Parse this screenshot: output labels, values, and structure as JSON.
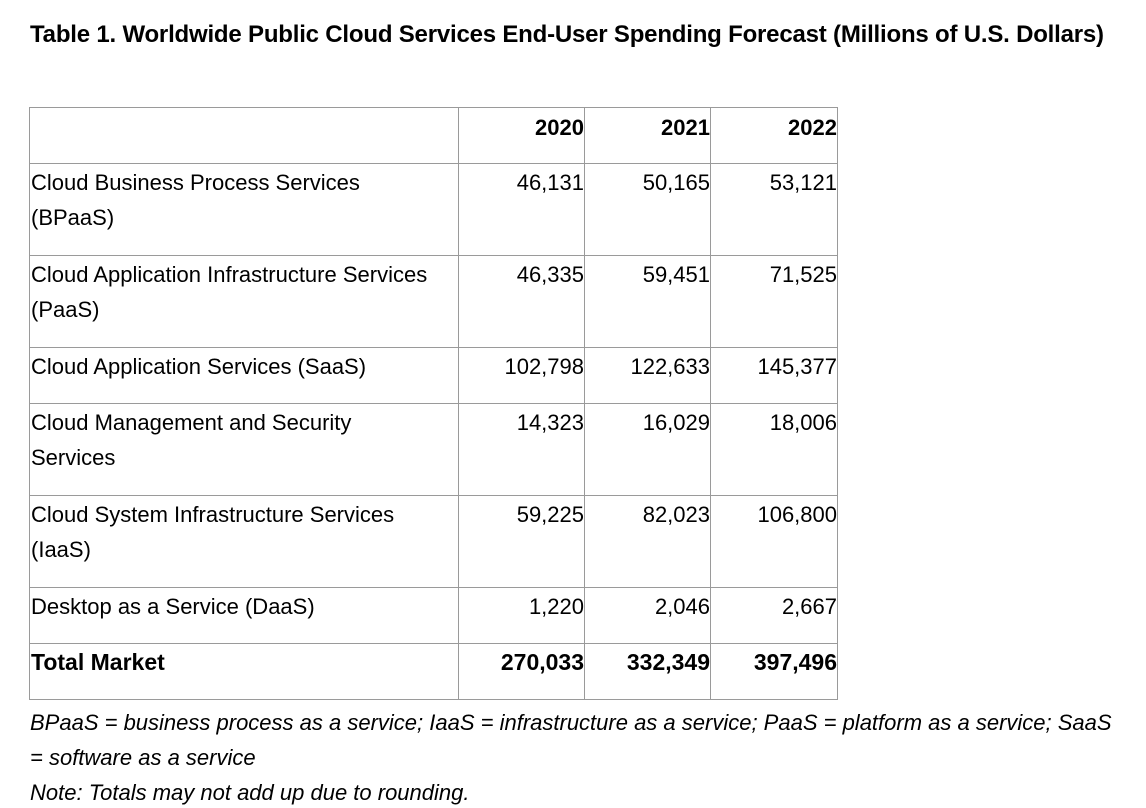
{
  "caption": "Table 1. Worldwide Public Cloud Services End-User Spending Forecast (Millions of U.S. Dollars)",
  "table": {
    "header": [
      "",
      "2020",
      "2021",
      "2022"
    ],
    "rows": [
      {
        "label": "Cloud Business Process Services (BPaaS)",
        "values": [
          "46,131",
          "50,165",
          "53,121"
        ]
      },
      {
        "label": "Cloud Application Infrastructure Services (PaaS)",
        "values": [
          "46,335",
          "59,451",
          "71,525"
        ]
      },
      {
        "label": "Cloud Application Services (SaaS)",
        "values": [
          "102,798",
          "122,633",
          "145,377"
        ]
      },
      {
        "label": "Cloud Management and Security Services",
        "values": [
          "14,323",
          "16,029",
          "18,006"
        ]
      },
      {
        "label": "Cloud System Infrastructure Services (IaaS)",
        "values": [
          "59,225",
          "82,023",
          "106,800"
        ]
      },
      {
        "label": "Desktop as a Service (DaaS)",
        "values": [
          "1,220",
          "2,046",
          "2,667"
        ]
      }
    ],
    "total": {
      "label": "Total Market",
      "values": [
        "270,033",
        "332,349",
        "397,496"
      ]
    }
  },
  "footnotes": {
    "abbreviations": "BPaaS = business process as a service; IaaS = infrastructure as a service; PaaS = platform as a service; SaaS = software as a service",
    "note": "Note: Totals may not add up due to rounding."
  }
}
